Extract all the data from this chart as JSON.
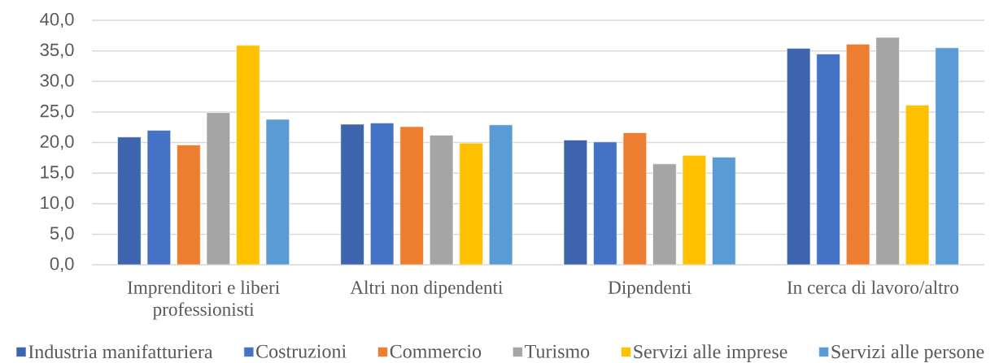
{
  "chart_data": {
    "type": "bar",
    "categories": [
      "Imprenditori e liberi professionisti",
      "Altri non dipendenti",
      "Dipendenti",
      "In cerca di lavoro/altro"
    ],
    "series": [
      {
        "name": "Industria manifatturiera",
        "color": "#3e64ae",
        "values": [
          20.9,
          23.0,
          20.4,
          35.4
        ]
      },
      {
        "name": "Costruzioni",
        "color": "#4472c4",
        "values": [
          22.0,
          23.2,
          20.1,
          34.5
        ]
      },
      {
        "name": "Commercio",
        "color": "#ed7d31",
        "values": [
          19.6,
          22.6,
          21.6,
          36.1
        ]
      },
      {
        "name": "Turismo",
        "color": "#a5a5a5",
        "values": [
          24.9,
          21.2,
          16.5,
          37.2
        ]
      },
      {
        "name": "Servizi alle imprese",
        "color": "#ffc000",
        "values": [
          35.9,
          19.9,
          17.9,
          26.1
        ]
      },
      {
        "name": "Servizi alle persone",
        "color": "#5b9bd5",
        "values": [
          23.8,
          22.9,
          17.6,
          35.5
        ]
      }
    ],
    "ylim": [
      0,
      40
    ],
    "yticks": [
      {
        "value": 0,
        "label": "0,0"
      },
      {
        "value": 5,
        "label": "5,0"
      },
      {
        "value": 10,
        "label": "10,0"
      },
      {
        "value": 15,
        "label": "15,0"
      },
      {
        "value": 20,
        "label": "20,0"
      },
      {
        "value": 25,
        "label": "25,0"
      },
      {
        "value": 30,
        "label": "30,0"
      },
      {
        "value": 35,
        "label": "35,0"
      },
      {
        "value": 40,
        "label": "40,0"
      }
    ],
    "grid": "y",
    "legend": "bottom"
  }
}
